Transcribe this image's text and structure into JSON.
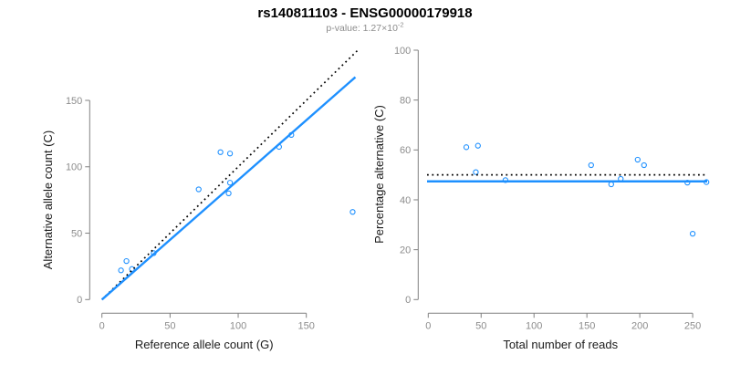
{
  "header": {
    "title": "rs140811103 - ENSG00000179918",
    "subtitle_prefix": "p-value: 1.27×10",
    "subtitle_exponent": "-2"
  },
  "colors": {
    "title": "#000000",
    "subtitle": "#8c8c8c",
    "points": "#1E90FF",
    "fit_line": "#1E90FF",
    "expected_line": "#000000",
    "axis_line": "#808080",
    "tick_label": "#8c8c8c",
    "axis_title": "#1a1a1a"
  },
  "chart_data": [
    {
      "type": "scatter",
      "xlabel": "Reference allele count (G)",
      "ylabel": "Alternative allele count (C)",
      "xticks": [
        0,
        50,
        100,
        150
      ],
      "yticks": [
        0,
        50,
        100,
        150
      ],
      "xlim": [
        0,
        193
      ],
      "ylim": [
        0,
        189
      ],
      "grid": false,
      "points": [
        [
          14,
          22
        ],
        [
          18,
          29
        ],
        [
          22,
          23
        ],
        [
          38,
          35
        ],
        [
          71,
          83
        ],
        [
          87,
          111
        ],
        [
          93,
          80
        ],
        [
          94,
          88
        ],
        [
          94,
          110
        ],
        [
          130,
          115
        ],
        [
          139,
          124
        ],
        [
          184,
          66
        ]
      ],
      "lines": [
        {
          "name": "identity-line",
          "style": "dotted",
          "color": "#000000",
          "from": [
            0,
            0
          ],
          "to": [
            188,
            188
          ]
        },
        {
          "name": "fit-line",
          "style": "solid",
          "color": "#1E90FF",
          "from": [
            0,
            0
          ],
          "to": [
            186,
            167.5
          ]
        }
      ]
    },
    {
      "type": "scatter",
      "xlabel": "Total number of reads",
      "ylabel": "Percentage alternative (C)",
      "xticks": [
        0,
        50,
        100,
        150,
        200,
        250
      ],
      "yticks": [
        0,
        20,
        40,
        60,
        80,
        100
      ],
      "xlim": [
        0,
        264
      ],
      "ylim": [
        0,
        100
      ],
      "grid": false,
      "points": [
        [
          36,
          61.1
        ],
        [
          47,
          61.7
        ],
        [
          45,
          51.1
        ],
        [
          73,
          47.9
        ],
        [
          154,
          53.9
        ],
        [
          173,
          46.2
        ],
        [
          182,
          48.4
        ],
        [
          198,
          56.1
        ],
        [
          204,
          53.9
        ],
        [
          245,
          46.9
        ],
        [
          250,
          26.4
        ],
        [
          263,
          47.1
        ]
      ],
      "hlines": [
        {
          "name": "expected-line",
          "style": "dotted",
          "color": "#000000",
          "y": 50
        },
        {
          "name": "fit-line",
          "style": "solid",
          "color": "#1E90FF",
          "y": 47.4
        }
      ]
    }
  ]
}
